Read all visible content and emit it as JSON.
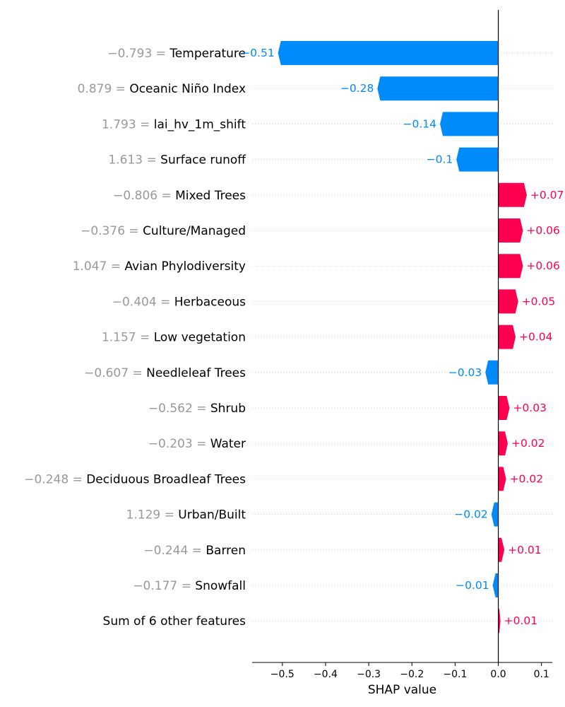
{
  "chart_data": {
    "type": "bar",
    "orientation": "horizontal",
    "xlabel": "SHAP value",
    "xlim": [
      -0.57,
      0.125
    ],
    "xticks": [
      -0.5,
      -0.4,
      -0.3,
      -0.2,
      -0.1,
      0.0,
      0.1
    ],
    "xtick_labels": [
      "−0.5",
      "−0.4",
      "−0.3",
      "−0.2",
      "−0.1",
      "0.0",
      "0.1"
    ],
    "grid": "dotted horizontal row lines",
    "colors": {
      "positive": "#ff0051",
      "negative": "#008bfb",
      "feature_value": "#999999"
    },
    "features": [
      {
        "value_text": "−0.793",
        "name": "Temperature",
        "shap": -0.51,
        "label": "−0.51"
      },
      {
        "value_text": "0.879",
        "name": "Oceanic Niño Index",
        "shap": -0.28,
        "label": "−0.28"
      },
      {
        "value_text": "1.793",
        "name": "lai_hv_1m_shift",
        "shap": -0.135,
        "label": "−0.14"
      },
      {
        "value_text": "1.613",
        "name": "Surface runoff",
        "shap": -0.097,
        "label": "−0.1"
      },
      {
        "value_text": "−0.806",
        "name": "Mixed Trees",
        "shap": 0.066,
        "label": "+0.07"
      },
      {
        "value_text": "−0.376",
        "name": "Culture/Managed",
        "shap": 0.057,
        "label": "+0.06"
      },
      {
        "value_text": "1.047",
        "name": "Avian Phylodiversity",
        "shap": 0.057,
        "label": "+0.06"
      },
      {
        "value_text": "−0.404",
        "name": "Herbaceous",
        "shap": 0.046,
        "label": "+0.05"
      },
      {
        "value_text": "1.157",
        "name": "Low vegetation",
        "shap": 0.04,
        "label": "+0.04"
      },
      {
        "value_text": "−0.607",
        "name": "Needleleaf Trees",
        "shap": -0.03,
        "label": "−0.03"
      },
      {
        "value_text": "−0.562",
        "name": "Shrub",
        "shap": 0.026,
        "label": "+0.03"
      },
      {
        "value_text": "−0.203",
        "name": "Water",
        "shap": 0.022,
        "label": "+0.02"
      },
      {
        "value_text": "−0.248",
        "name": "Deciduous Broadleaf Trees",
        "shap": 0.018,
        "label": "+0.02"
      },
      {
        "value_text": "1.129",
        "name": "Urban/Built",
        "shap": -0.016,
        "label": "−0.02"
      },
      {
        "value_text": "−0.244",
        "name": "Barren",
        "shap": 0.014,
        "label": "+0.01"
      },
      {
        "value_text": "−0.177",
        "name": "Snowfall",
        "shap": -0.013,
        "label": "−0.01"
      },
      {
        "value_text": "",
        "name": "Sum of 6 other features",
        "shap": 0.005,
        "label": "+0.01"
      }
    ]
  }
}
